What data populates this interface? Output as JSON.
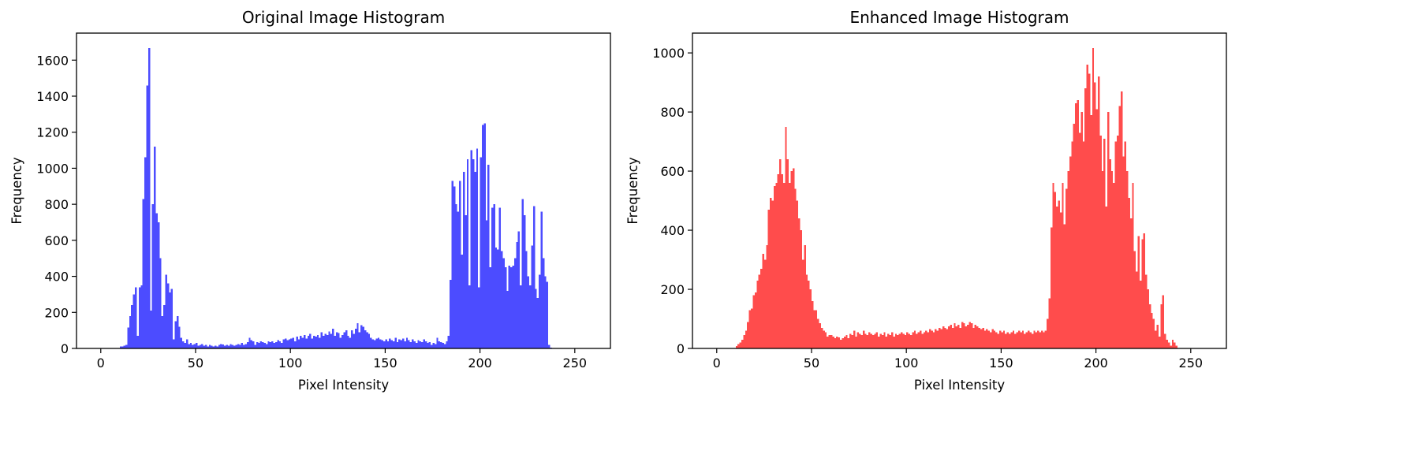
{
  "chart_data": [
    {
      "type": "histogram",
      "title": "Original Image Histogram",
      "xlabel": "Pixel Intensity",
      "ylabel": "Frequency",
      "color": "#4c4cff",
      "bins": [
        0,
        1,
        2,
        3,
        4,
        5,
        6,
        7,
        8,
        9,
        10,
        11,
        12,
        13,
        14,
        15,
        16,
        17,
        18,
        19,
        20,
        21,
        22,
        23,
        24,
        25,
        26,
        27,
        28,
        29,
        30,
        31,
        32,
        33,
        34,
        35,
        36,
        37,
        38,
        39,
        40,
        41,
        42,
        43,
        44,
        45,
        46,
        47,
        48,
        49,
        50,
        51,
        52,
        53,
        54,
        55,
        56,
        57,
        58,
        59,
        60,
        61,
        62,
        63,
        64,
        65,
        66,
        67,
        68,
        69,
        70,
        71,
        72,
        73,
        74,
        75,
        76,
        77,
        78,
        79,
        80,
        81,
        82,
        83,
        84,
        85,
        86,
        87,
        88,
        89,
        90,
        91,
        92,
        93,
        94,
        95,
        96,
        97,
        98,
        99,
        100,
        101,
        102,
        103,
        104,
        105,
        106,
        107,
        108,
        109,
        110,
        111,
        112,
        113,
        114,
        115,
        116,
        117,
        118,
        119,
        120,
        121,
        122,
        123,
        124,
        125,
        126,
        127,
        128,
        129,
        130,
        131,
        132,
        133,
        134,
        135,
        136,
        137,
        138,
        139,
        140,
        141,
        142,
        143,
        144,
        145,
        146,
        147,
        148,
        149,
        150,
        151,
        152,
        153,
        154,
        155,
        156,
        157,
        158,
        159,
        160,
        161,
        162,
        163,
        164,
        165,
        166,
        167,
        168,
        169,
        170,
        171,
        172,
        173,
        174,
        175,
        176,
        177,
        178,
        179,
        180,
        181,
        182,
        183,
        184,
        185,
        186,
        187,
        188,
        189,
        190,
        191,
        192,
        193,
        194,
        195,
        196,
        197,
        198,
        199,
        200,
        201,
        202,
        203,
        204,
        205,
        206,
        207,
        208,
        209,
        210,
        211,
        212,
        213,
        214,
        215,
        216,
        217,
        218,
        219,
        220,
        221,
        222,
        223,
        224,
        225,
        226,
        227,
        228,
        229,
        230,
        231,
        232,
        233,
        234,
        235,
        236,
        237,
        238,
        239,
        240,
        241,
        242,
        243,
        244,
        245,
        246,
        247,
        248,
        249,
        250,
        251,
        252,
        253,
        254,
        255,
        256
      ],
      "counts": [
        0,
        0,
        0,
        0,
        0,
        0,
        0,
        0,
        0,
        0,
        10,
        12,
        15,
        20,
        115,
        180,
        240,
        300,
        340,
        70,
        340,
        350,
        830,
        1060,
        1460,
        1667,
        210,
        800,
        1120,
        750,
        700,
        500,
        180,
        240,
        410,
        360,
        310,
        330,
        50,
        150,
        180,
        120,
        60,
        40,
        30,
        50,
        25,
        30,
        20,
        25,
        30,
        15,
        20,
        25,
        15,
        20,
        10,
        20,
        15,
        10,
        15,
        12,
        20,
        25,
        22,
        15,
        20,
        15,
        25,
        20,
        15,
        20,
        25,
        20,
        30,
        20,
        25,
        35,
        60,
        45,
        40,
        20,
        35,
        30,
        40,
        35,
        30,
        25,
        40,
        35,
        40,
        30,
        35,
        45,
        40,
        30,
        50,
        55,
        45,
        50,
        55,
        60,
        40,
        65,
        50,
        70,
        60,
        75,
        55,
        70,
        80,
        55,
        70,
        65,
        75,
        60,
        90,
        70,
        80,
        75,
        95,
        80,
        110,
        70,
        90,
        85,
        60,
        75,
        90,
        100,
        70,
        60,
        100,
        80,
        110,
        140,
        90,
        130,
        120,
        100,
        90,
        80,
        60,
        50,
        45,
        55,
        60,
        50,
        45,
        40,
        50,
        40,
        55,
        45,
        40,
        60,
        35,
        50,
        45,
        55,
        40,
        60,
        45,
        35,
        50,
        40,
        30,
        45,
        40,
        35,
        50,
        40,
        30,
        35,
        20,
        30,
        25,
        60,
        40,
        35,
        30,
        25,
        40,
        70,
        380,
        930,
        900,
        800,
        760,
        930,
        520,
        980,
        740,
        1050,
        350,
        1100,
        1050,
        980,
        1110,
        340,
        1060,
        1240,
        1250,
        710,
        1020,
        450,
        780,
        800,
        560,
        550,
        780,
        540,
        500,
        450,
        320,
        460,
        450,
        460,
        500,
        590,
        650,
        350,
        830,
        740,
        540,
        400,
        350,
        570,
        790,
        330,
        280,
        410,
        760,
        500,
        400,
        370,
        20,
        5,
        0,
        0,
        0,
        0,
        0,
        0,
        0,
        0,
        0,
        0,
        0,
        0,
        0,
        0,
        0,
        0,
        0,
        0
      ],
      "xlim": [
        -12.8,
        268.8
      ],
      "xticks": [
        0,
        50,
        100,
        150,
        200,
        250
      ],
      "ylim": [
        0,
        1750
      ],
      "yticks": [
        0,
        200,
        400,
        600,
        800,
        1000,
        1200,
        1400,
        1600
      ]
    },
    {
      "type": "histogram",
      "title": "Enhanced Image Histogram",
      "xlabel": "Pixel Intensity",
      "ylabel": "Frequency",
      "color": "#ff4c4c",
      "bins": [
        0,
        1,
        2,
        3,
        4,
        5,
        6,
        7,
        8,
        9,
        10,
        11,
        12,
        13,
        14,
        15,
        16,
        17,
        18,
        19,
        20,
        21,
        22,
        23,
        24,
        25,
        26,
        27,
        28,
        29,
        30,
        31,
        32,
        33,
        34,
        35,
        36,
        37,
        38,
        39,
        40,
        41,
        42,
        43,
        44,
        45,
        46,
        47,
        48,
        49,
        50,
        51,
        52,
        53,
        54,
        55,
        56,
        57,
        58,
        59,
        60,
        61,
        62,
        63,
        64,
        65,
        66,
        67,
        68,
        69,
        70,
        71,
        72,
        73,
        74,
        75,
        76,
        77,
        78,
        79,
        80,
        81,
        82,
        83,
        84,
        85,
        86,
        87,
        88,
        89,
        90,
        91,
        92,
        93,
        94,
        95,
        96,
        97,
        98,
        99,
        100,
        101,
        102,
        103,
        104,
        105,
        106,
        107,
        108,
        109,
        110,
        111,
        112,
        113,
        114,
        115,
        116,
        117,
        118,
        119,
        120,
        121,
        122,
        123,
        124,
        125,
        126,
        127,
        128,
        129,
        130,
        131,
        132,
        133,
        134,
        135,
        136,
        137,
        138,
        139,
        140,
        141,
        142,
        143,
        144,
        145,
        146,
        147,
        148,
        149,
        150,
        151,
        152,
        153,
        154,
        155,
        156,
        157,
        158,
        159,
        160,
        161,
        162,
        163,
        164,
        165,
        166,
        167,
        168,
        169,
        170,
        171,
        172,
        173,
        174,
        175,
        176,
        177,
        178,
        179,
        180,
        181,
        182,
        183,
        184,
        185,
        186,
        187,
        188,
        189,
        190,
        191,
        192,
        193,
        194,
        195,
        196,
        197,
        198,
        199,
        200,
        201,
        202,
        203,
        204,
        205,
        206,
        207,
        208,
        209,
        210,
        211,
        212,
        213,
        214,
        215,
        216,
        217,
        218,
        219,
        220,
        221,
        222,
        223,
        224,
        225,
        226,
        227,
        228,
        229,
        230,
        231,
        232,
        233,
        234,
        235,
        236,
        237,
        238,
        239,
        240,
        241,
        242,
        243,
        244,
        245,
        246,
        247,
        248,
        249,
        250,
        251,
        252,
        253,
        254,
        255,
        256
      ],
      "counts": [
        0,
        0,
        0,
        0,
        0,
        0,
        0,
        0,
        0,
        0,
        8,
        15,
        20,
        30,
        45,
        60,
        90,
        130,
        135,
        180,
        190,
        230,
        250,
        270,
        320,
        300,
        350,
        470,
        510,
        500,
        550,
        560,
        590,
        640,
        590,
        560,
        750,
        640,
        560,
        600,
        610,
        540,
        500,
        440,
        400,
        300,
        350,
        250,
        230,
        200,
        160,
        130,
        130,
        100,
        85,
        70,
        60,
        55,
        40,
        45,
        45,
        40,
        35,
        40,
        38,
        30,
        35,
        40,
        45,
        35,
        50,
        45,
        60,
        40,
        55,
        50,
        45,
        60,
        50,
        45,
        55,
        50,
        45,
        50,
        55,
        40,
        50,
        45,
        55,
        40,
        50,
        45,
        55,
        40,
        50,
        45,
        50,
        55,
        50,
        45,
        55,
        50,
        45,
        55,
        60,
        50,
        55,
        60,
        50,
        55,
        60,
        55,
        65,
        60,
        55,
        65,
        60,
        70,
        65,
        75,
        70,
        65,
        75,
        80,
        70,
        85,
        75,
        80,
        70,
        90,
        85,
        75,
        80,
        90,
        85,
        70,
        80,
        75,
        70,
        65,
        70,
        60,
        65,
        60,
        55,
        65,
        60,
        55,
        50,
        60,
        55,
        60,
        50,
        55,
        50,
        55,
        60,
        50,
        55,
        60,
        55,
        60,
        50,
        55,
        60,
        55,
        50,
        60,
        55,
        60,
        55,
        60,
        55,
        60,
        100,
        170,
        410,
        560,
        530,
        480,
        500,
        460,
        560,
        420,
        540,
        600,
        650,
        700,
        760,
        830,
        840,
        730,
        800,
        700,
        880,
        960,
        930,
        790,
        1016,
        900,
        810,
        920,
        720,
        600,
        710,
        480,
        800,
        640,
        600,
        560,
        700,
        720,
        820,
        870,
        650,
        700,
        600,
        510,
        440,
        560,
        330,
        260,
        380,
        230,
        370,
        390,
        250,
        200,
        150,
        120,
        100,
        60,
        80,
        40,
        150,
        180,
        50,
        30,
        20,
        10,
        30,
        20,
        10,
        0,
        0,
        0,
        0,
        0,
        0,
        0,
        0,
        0,
        0,
        0,
        0,
        0
      ],
      "xlim": [
        -12.8,
        268.8
      ],
      "xticks": [
        0,
        50,
        100,
        150,
        200,
        250
      ],
      "ylim": [
        0,
        1067
      ],
      "yticks": [
        0,
        200,
        400,
        600,
        800,
        1000
      ]
    }
  ]
}
